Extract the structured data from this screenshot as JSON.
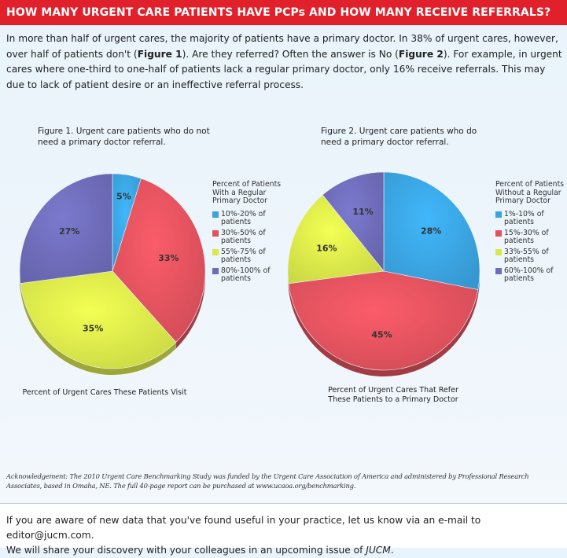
{
  "header": {
    "title": "HOW MANY URGENT CARE PATIENTS HAVE PCPs AND HOW MANY RECEIVE REFERRALS?"
  },
  "intro": {
    "part1": "In more than half of urgent cares, the majority of patients have a primary doctor. In 38% of urgent cares, however, over half of patients don't (",
    "fig1": "Figure 1",
    "part2": "). Are they referred? Often the answer is No (",
    "fig2": "Figure 2",
    "part3": "). For example, in urgent cares where one-third to one-half of patients lack a regular primary doctor, only 16% receive referrals. This may due to lack of patient desire or an ineffective referral process."
  },
  "colors": {
    "header_bg": "#e0202a",
    "blue": "#3aa3e0",
    "red": "#e0525e",
    "green": "#d9e84a",
    "purple": "#6e6cb8"
  },
  "chart_data": [
    {
      "type": "pie",
      "title": "Figure 1. Urgent care patients who do not need a primary doctor referral.",
      "caption": "Percent of Urgent Cares These Patients Visit",
      "legend_title": "Percent of Patients With a Regular Primary Doctor",
      "legend_placement": "right",
      "slices": [
        {
          "label": "10%-20% of patients",
          "value": 5,
          "display": "5%",
          "color": "#3aa3e0"
        },
        {
          "label": "30%-50% of patients",
          "value": 33,
          "display": "33%",
          "color": "#e0525e"
        },
        {
          "label": "55%-75% of patients",
          "value": 35,
          "display": "35%",
          "color": "#d9e84a"
        },
        {
          "label": "80%-100% of patients",
          "value": 27,
          "display": "27%",
          "color": "#6e6cb8"
        }
      ]
    },
    {
      "type": "pie",
      "title": "Figure 2. Urgent care patients who do need a primary doctor referral.",
      "caption": "Percent of Urgent Cares That Refer These Patients to a Primary Doctor",
      "legend_title": "Percent of Patients Without a Regular Primary Doctor",
      "legend_placement": "right",
      "slices": [
        {
          "label": "1%-10% of patients",
          "value": 28,
          "display": "28%",
          "color": "#3aa3e0"
        },
        {
          "label": "15%-30% of patients",
          "value": 45,
          "display": "45%",
          "color": "#e0525e"
        },
        {
          "label": "33%-55% of patients",
          "value": 16,
          "display": "16%",
          "color": "#d9e84a"
        },
        {
          "label": "60%-100% of patients",
          "value": 11,
          "display": "11%",
          "color": "#6e6cb8"
        }
      ]
    }
  ],
  "acknowledgement": "Acknowledgement: The 2010 Urgent Care Benchmarking Study was funded by the Urgent Care Association of America and administered by Professional Research Associates, based in Omaha, NE. The full 40-page report can be purchased at www.ucaoa.org/benchmarking.",
  "footer": {
    "line1": "If you are aware of new data that you've found useful in your practice, let us know via an e-mail to editor@jucm.com.",
    "line2a": "We will share your discovery with your colleagues in an upcoming issue of ",
    "line2b": "JUCM",
    "line2c": "."
  }
}
